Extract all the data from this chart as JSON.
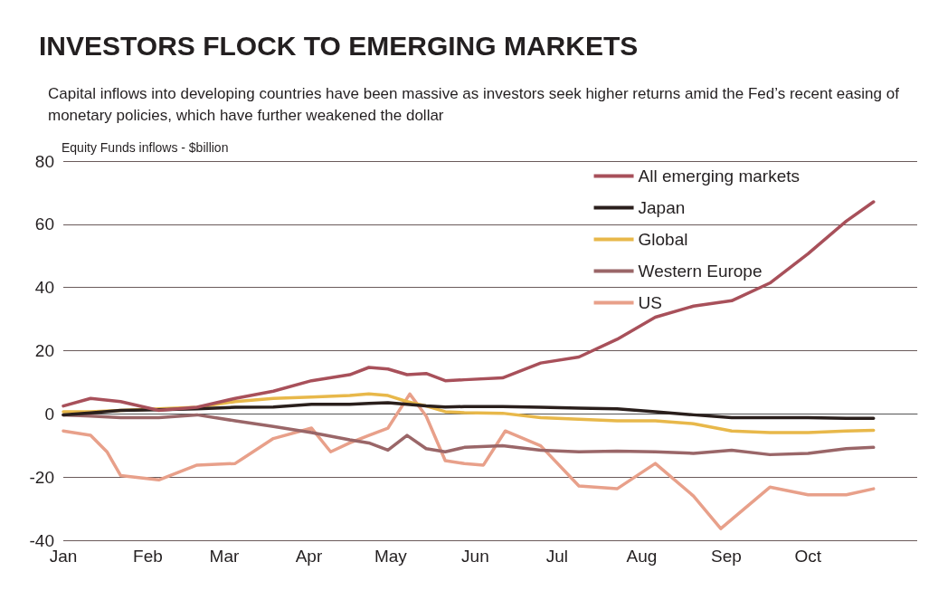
{
  "chart_data": {
    "type": "line",
    "title": "INVESTORS FLOCK TO EMERGING MARKETS",
    "subtitle": "Capital inflows into developing countries have been massive as investors seek higher returns amid the Fed’s recent easing of monetary policies, which have further weakened the dollar",
    "ylabel": "Equity Funds inflows - $billion",
    "x": [
      "--01-01",
      "--01-11",
      "--01-22",
      "--02-05",
      "--02-19",
      "--03-05",
      "--03-19",
      "--04-02",
      "--04-16",
      "--04-23",
      "--04-30",
      "--05-07",
      "--05-14",
      "--05-21",
      "--05-28",
      "--06-11",
      "--06-25",
      "--07-09",
      "--07-23",
      "--08-06",
      "--08-20",
      "--09-03",
      "--09-17",
      "--10-01",
      "--10-15",
      "--10-25"
    ],
    "series": [
      {
        "name": "All emerging markets",
        "color": "#a8505a",
        "values": [
          2.5,
          4.9,
          3.9,
          1.1,
          2.1,
          4.9,
          7.2,
          10.5,
          12.4,
          14.7,
          14.2,
          12.4,
          12.8,
          10.5,
          10.8,
          11.4,
          16.1,
          18,
          23.6,
          30.6,
          34.1,
          35.8,
          41.4,
          50.7,
          61,
          67.1
        ]
      },
      {
        "name": "Japan",
        "color": "#2a1f1c",
        "values": [
          -0.3,
          0.3,
          1.1,
          1.3,
          1.6,
          2.1,
          2.2,
          3,
          3,
          3.3,
          3.5,
          3,
          2.5,
          2.2,
          2.3,
          2.3,
          2.1,
          1.8,
          1.6,
          0.7,
          -0.3,
          -1.2,
          -1.2,
          -1.2,
          -1.4,
          -1.4
        ]
      },
      {
        "name": "Global",
        "color": "#e8b84a",
        "values": [
          0.7,
          0.7,
          1.1,
          1.6,
          2.1,
          3.9,
          4.9,
          5.3,
          5.8,
          6.3,
          5.8,
          3.9,
          2.5,
          0.7,
          0.4,
          0.2,
          -1.2,
          -1.7,
          -2.2,
          -2.2,
          -3.1,
          -5.4,
          -5.9,
          -5.9,
          -5.4,
          -5.2
        ]
      },
      {
        "name": "Western Europe",
        "color": "#9a6668",
        "values": [
          -0.3,
          -0.7,
          -1.2,
          -1.2,
          -0.3,
          -2.2,
          -4,
          -5.9,
          -8.2,
          -9.2,
          -11.5,
          -6.8,
          -11,
          -12,
          -10.6,
          -10.1,
          -11.5,
          -12,
          -11.8,
          -12,
          -12.5,
          -11.5,
          -12.9,
          -12.5,
          -11,
          -10.6
        ]
      },
      {
        "name": "US",
        "color": "#e8a08a",
        "x": [
          "--01-01",
          "--01-11",
          "--01-17",
          "--01-22",
          "--02-05",
          "--02-19",
          "--03-05",
          "--03-19",
          "--04-02",
          "--04-09",
          "--04-16",
          "--04-23",
          "--04-30",
          "--05-08",
          "--05-14",
          "--05-21",
          "--05-28",
          "--06-04",
          "--06-12",
          "--06-25",
          "--07-09",
          "--07-23",
          "--08-06",
          "--08-20",
          "--08-30",
          "--09-17",
          "--10-01",
          "--10-15",
          "--10-25"
        ],
        "values": [
          -5.4,
          -6.8,
          -12,
          -19.5,
          -20.9,
          -16.2,
          -15.7,
          -7.8,
          -4.5,
          -12,
          -9.2,
          -6.8,
          -4.5,
          6.3,
          -0.7,
          -14.8,
          -15.7,
          -16.2,
          -5.4,
          -10.1,
          -22.8,
          -23.7,
          -15.7,
          -26,
          -36.3,
          -23.2,
          -25.6,
          -25.6,
          -23.7
        ]
      }
    ],
    "xlim": [
      "--01-01",
      "--11-10"
    ],
    "xticks": [
      {
        "value": "--01-01",
        "label": "Jan"
      },
      {
        "value": "--02-01",
        "label": "Feb"
      },
      {
        "value": "--03-01",
        "label": "Mar"
      },
      {
        "value": "--04-01",
        "label": "Apr"
      },
      {
        "value": "--05-01",
        "label": "May"
      },
      {
        "value": "--06-01",
        "label": "Jun"
      },
      {
        "value": "--07-01",
        "label": "Jul"
      },
      {
        "value": "--08-01",
        "label": "Aug"
      },
      {
        "value": "--09-01",
        "label": "Sep"
      },
      {
        "value": "--10-01",
        "label": "Oct"
      }
    ],
    "ylim": [
      -40,
      80
    ],
    "yticks": [
      -40,
      -20,
      0,
      20,
      40,
      60,
      80
    ],
    "grid": "y",
    "legend": "top right",
    "marker": "none",
    "line_style": "solid"
  }
}
